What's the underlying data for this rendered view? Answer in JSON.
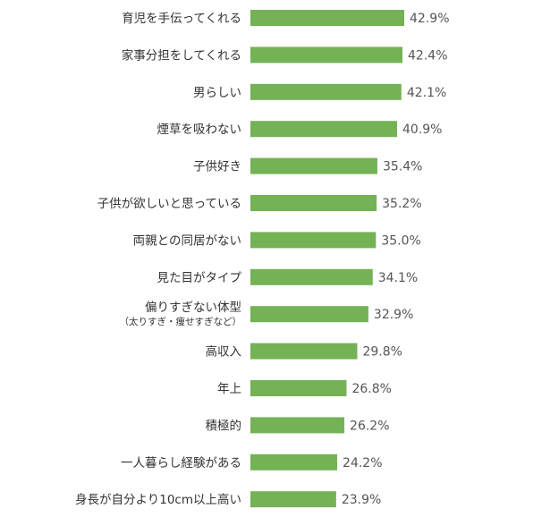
{
  "chart_data": {
    "type": "bar",
    "orientation": "horizontal",
    "color": "#74b256",
    "categories": [
      "育児を手伝ってくれる",
      "家事分担をしてくれる",
      "男らしい",
      "煙草を吸わない",
      "子供好き",
      "子供が欲しいと思っている",
      "両親との同居がない",
      "見た目がタイプ",
      "偏りすぎない体型",
      "高収入",
      "年上",
      "積極的",
      "一人暮らし経験がある",
      "身長が自分より10cm以上高い"
    ],
    "category_sublabels": [
      null,
      null,
      null,
      null,
      null,
      null,
      null,
      null,
      "（太りすぎ・痩せすぎなど）",
      null,
      null,
      null,
      null,
      null
    ],
    "values": [
      42.9,
      42.4,
      42.1,
      40.9,
      35.4,
      35.2,
      35.0,
      34.1,
      32.9,
      29.8,
      26.8,
      26.2,
      24.2,
      23.9
    ],
    "value_labels": [
      "42.9%",
      "42.4%",
      "42.1%",
      "40.9%",
      "35.4%",
      "35.2%",
      "35.0%",
      "34.1%",
      "32.9%",
      "29.8%",
      "26.8%",
      "26.2%",
      "24.2%",
      "23.9%"
    ]
  }
}
